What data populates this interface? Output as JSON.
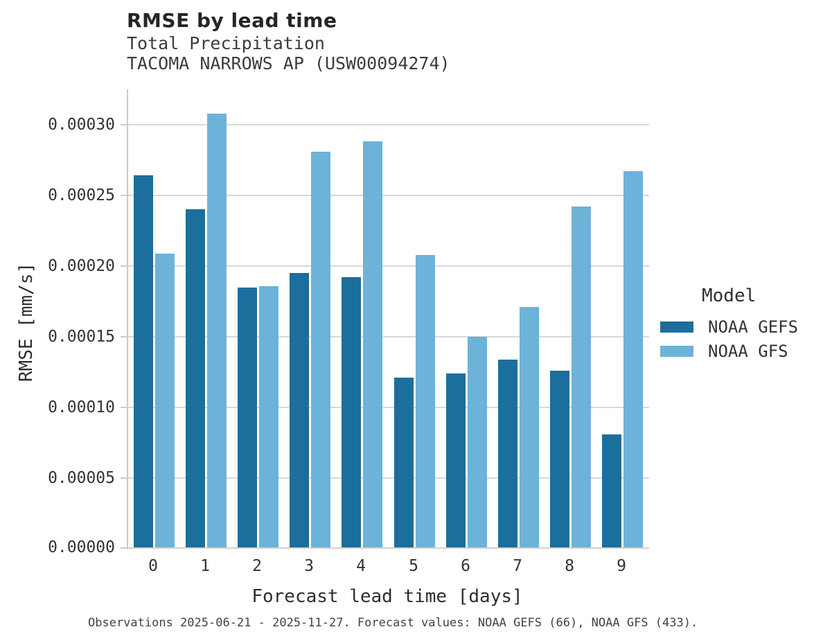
{
  "header": {
    "title": "RMSE by lead time",
    "subtitle": "Total Precipitation",
    "station": "TACOMA NARROWS AP (USW00094274)"
  },
  "chart_data": {
    "type": "bar",
    "title": "RMSE by lead time",
    "subtitle": "Total Precipitation",
    "station": "TACOMA NARROWS AP (USW00094274)",
    "categories": [
      "0",
      "1",
      "2",
      "3",
      "4",
      "5",
      "6",
      "7",
      "8",
      "9"
    ],
    "series": [
      {
        "name": "NOAA GEFS",
        "color": "#1c6e9d",
        "values": [
          0.000264,
          0.00024,
          0.000185,
          0.000195,
          0.000192,
          0.000121,
          0.000124,
          0.000134,
          0.000126,
          8.1e-05
        ]
      },
      {
        "name": "NOAA GFS",
        "color": "#6db2d8",
        "values": [
          0.000209,
          0.000308,
          0.000186,
          0.000281,
          0.000288,
          0.000208,
          0.00015,
          0.000171,
          0.000242,
          0.000267
        ]
      }
    ],
    "xlabel": "Forecast lead time [days]",
    "ylabel": "RMSE [mm/s]",
    "ylim": [
      0,
      0.000325
    ],
    "ytick_step": 5e-05,
    "ytick_max": 0.0003,
    "ytick_decimals": 5,
    "grid": true,
    "legend_title": "Model",
    "legend_position": "right"
  },
  "footer": {
    "caption": "Observations 2025-06-21 - 2025-11-27. Forecast values: NOAA GEFS (66), NOAA GFS (433)."
  }
}
